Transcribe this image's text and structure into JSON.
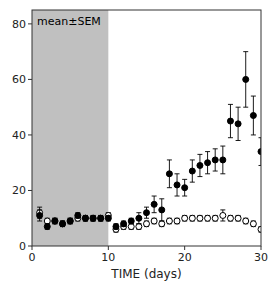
{
  "chart_data": {
    "type": "scatter",
    "x_label": "TIME (days)",
    "annotation": "mean±SEM",
    "x": [
      1,
      2,
      3,
      4,
      5,
      6,
      7,
      8,
      9,
      10,
      11,
      12,
      13,
      14,
      15,
      16,
      17,
      18,
      19,
      20,
      21,
      22,
      23,
      24,
      25,
      26,
      27,
      28,
      29,
      30
    ],
    "series": [
      {
        "color": "#000000",
        "marker": "circle-open",
        "values": [
          12,
          9,
          9,
          8,
          9,
          10,
          10,
          10,
          10,
          11,
          6,
          7,
          7,
          7,
          8,
          9,
          8,
          9,
          9,
          10,
          10,
          10,
          10,
          10,
          11,
          10,
          10,
          9,
          8,
          6
        ],
        "errors": [
          2,
          1,
          1,
          1,
          1,
          1,
          1,
          1,
          1,
          1,
          1,
          1,
          1,
          1,
          1,
          1,
          1,
          1,
          1,
          1,
          1,
          1,
          1,
          1,
          2,
          1,
          1,
          1,
          1,
          1
        ]
      },
      {
        "color": "#000000",
        "marker": "circle",
        "values": [
          11,
          7,
          9,
          8,
          9,
          11,
          10,
          10,
          10,
          10,
          7,
          8,
          9,
          10,
          12,
          15,
          13,
          26,
          22,
          21,
          27,
          29,
          30,
          31,
          31,
          45,
          44,
          60,
          47,
          34
        ],
        "errors": [
          2,
          1,
          1,
          1,
          1,
          1,
          1,
          1,
          1,
          1,
          1,
          1,
          1,
          2,
          2,
          3,
          4,
          5,
          4,
          3,
          4,
          4,
          4,
          4,
          5,
          6,
          6,
          10,
          7,
          5
        ]
      }
    ],
    "span": {
      "x": [
        0,
        10
      ],
      "color": "#c0c0c0"
    },
    "xlim": [
      0,
      30
    ],
    "xticks": [
      0,
      10,
      20,
      30
    ],
    "ylim": [
      0,
      85
    ],
    "yticks": [
      0,
      20,
      40,
      60,
      80
    ],
    "grid": false
  }
}
